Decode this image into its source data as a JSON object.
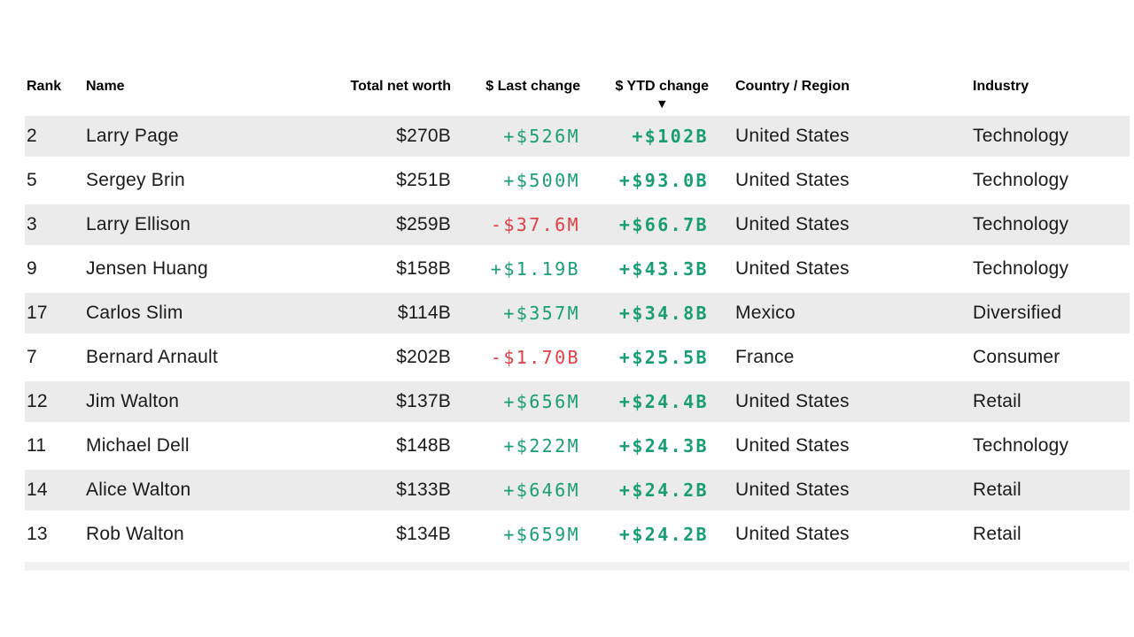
{
  "colors": {
    "positive": "#189e71",
    "negative": "#e03e43",
    "row_stripe": "#ebebeb",
    "header_text": "#000000",
    "body_text": "#1a1a1a"
  },
  "table": {
    "columns": [
      {
        "label": "Rank",
        "align": "left"
      },
      {
        "label": "Name",
        "align": "left"
      },
      {
        "label": "Total net worth",
        "align": "right"
      },
      {
        "label": "$ Last change",
        "align": "right"
      },
      {
        "label": "$ YTD change",
        "align": "right",
        "sorted": "desc",
        "sort_indicator": "▼"
      },
      {
        "label": "Country / Region",
        "align": "left"
      },
      {
        "label": "Industry",
        "align": "left"
      }
    ],
    "rows": [
      {
        "rank": "2",
        "name": "Larry Page",
        "total_net_worth": "$270B",
        "last_change": "+$526M",
        "ytd_change": "+$102B",
        "country": "United States",
        "industry": "Technology"
      },
      {
        "rank": "5",
        "name": "Sergey Brin",
        "total_net_worth": "$251B",
        "last_change": "+$500M",
        "ytd_change": "+$93.0B",
        "country": "United States",
        "industry": "Technology"
      },
      {
        "rank": "3",
        "name": "Larry Ellison",
        "total_net_worth": "$259B",
        "last_change": "-$37.6M",
        "ytd_change": "+$66.7B",
        "country": "United States",
        "industry": "Technology"
      },
      {
        "rank": "9",
        "name": "Jensen Huang",
        "total_net_worth": "$158B",
        "last_change": "+$1.19B",
        "ytd_change": "+$43.3B",
        "country": "United States",
        "industry": "Technology"
      },
      {
        "rank": "17",
        "name": "Carlos Slim",
        "total_net_worth": "$114B",
        "last_change": "+$357M",
        "ytd_change": "+$34.8B",
        "country": "Mexico",
        "industry": "Diversified"
      },
      {
        "rank": "7",
        "name": "Bernard Arnault",
        "total_net_worth": "$202B",
        "last_change": "-$1.70B",
        "ytd_change": "+$25.5B",
        "country": "France",
        "industry": "Consumer"
      },
      {
        "rank": "12",
        "name": "Jim Walton",
        "total_net_worth": "$137B",
        "last_change": "+$656M",
        "ytd_change": "+$24.4B",
        "country": "United States",
        "industry": "Retail"
      },
      {
        "rank": "11",
        "name": "Michael Dell",
        "total_net_worth": "$148B",
        "last_change": "+$222M",
        "ytd_change": "+$24.3B",
        "country": "United States",
        "industry": "Technology"
      },
      {
        "rank": "14",
        "name": "Alice Walton",
        "total_net_worth": "$133B",
        "last_change": "+$646M",
        "ytd_change": "+$24.2B",
        "country": "United States",
        "industry": "Retail"
      },
      {
        "rank": "13",
        "name": "Rob Walton",
        "total_net_worth": "$134B",
        "last_change": "+$659M",
        "ytd_change": "+$24.2B",
        "country": "United States",
        "industry": "Retail"
      }
    ]
  }
}
